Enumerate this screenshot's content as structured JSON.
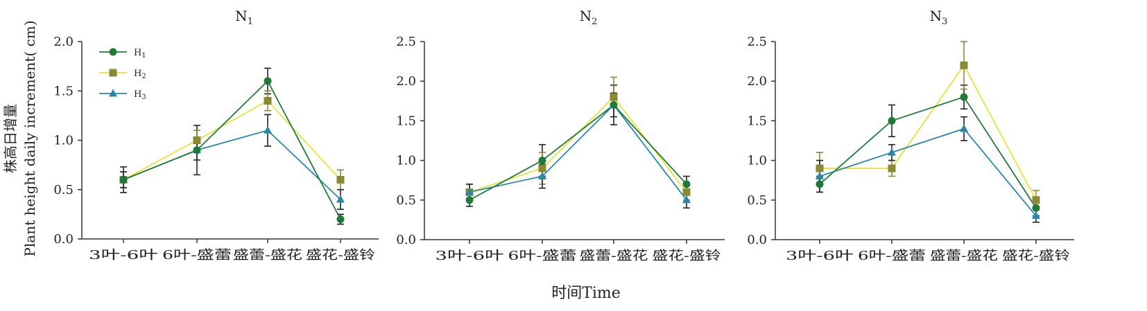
{
  "figure": {
    "xlabel": "时间Time",
    "ylabel_cn": "株高日增量",
    "ylabel_en": "Plant height daily increment( cm)"
  },
  "colors": {
    "H1": "#1f7a3a",
    "H2": "#e8e23a",
    "H3": "#2a87a8",
    "H2_marker": "#8a8a35",
    "axis": "#333333",
    "errorbar": "#222222"
  },
  "legend": [
    {
      "series": "H1",
      "base": "H",
      "sub": "1",
      "marker": "circle"
    },
    {
      "series": "H2",
      "base": "H",
      "sub": "2",
      "marker": "square"
    },
    {
      "series": "H3",
      "base": "H",
      "sub": "3",
      "marker": "triangle"
    }
  ],
  "chart_data": [
    {
      "type": "line",
      "title": "N",
      "title_sub": "1",
      "categories": [
        "3叶-6叶",
        "6叶-盛蕾",
        "盛蕾-盛花",
        "盛花-盛铃"
      ],
      "ylim": [
        0,
        2.0
      ],
      "yticks": [
        "0.0",
        "0.5",
        "1.0",
        "1.5",
        "2.0"
      ],
      "series": [
        {
          "name": "H1",
          "values": [
            0.6,
            0.9,
            1.6,
            0.2
          ],
          "errors": [
            0.13,
            0.25,
            0.13,
            0.05
          ]
        },
        {
          "name": "H2",
          "values": [
            0.6,
            1.0,
            1.4,
            0.6
          ],
          "errors": [
            0.08,
            0.1,
            0.1,
            0.1
          ]
        },
        {
          "name": "H3",
          "values": [
            0.6,
            0.9,
            1.1,
            0.4
          ],
          "errors": [
            0.08,
            0.1,
            0.16,
            0.1
          ]
        }
      ]
    },
    {
      "type": "line",
      "title": "N",
      "title_sub": "2",
      "categories": [
        "3叶-6叶",
        "6叶-盛蕾",
        "盛蕾-盛花",
        "盛花-盛铃"
      ],
      "ylim": [
        0,
        2.5
      ],
      "yticks": [
        "0.0",
        "0.5",
        "1.0",
        "1.5",
        "2.0",
        "2.5"
      ],
      "series": [
        {
          "name": "H1",
          "values": [
            0.5,
            1.0,
            1.7,
            0.7
          ],
          "errors": [
            0.08,
            0.2,
            0.25,
            0.1
          ]
        },
        {
          "name": "H2",
          "values": [
            0.6,
            0.9,
            1.8,
            0.6
          ],
          "errors": [
            0.1,
            0.2,
            0.25,
            0.1
          ]
        },
        {
          "name": "H3",
          "values": [
            0.6,
            0.8,
            1.7,
            0.5
          ],
          "errors": [
            0.1,
            0.15,
            0.15,
            0.1
          ]
        }
      ]
    },
    {
      "type": "line",
      "title": "N",
      "title_sub": "3",
      "categories": [
        "3叶-6叶",
        "6叶-盛蕾",
        "盛蕾-盛花",
        "盛花-盛铃"
      ],
      "ylim": [
        0,
        2.5
      ],
      "yticks": [
        "0.0",
        "0.5",
        "1.0",
        "1.5",
        "2.0",
        "2.5"
      ],
      "series": [
        {
          "name": "H1",
          "values": [
            0.7,
            1.5,
            1.8,
            0.4
          ],
          "errors": [
            0.1,
            0.2,
            0.15,
            0.1
          ]
        },
        {
          "name": "H2",
          "values": [
            0.9,
            0.9,
            2.2,
            0.5
          ],
          "errors": [
            0.2,
            0.1,
            0.3,
            0.12
          ]
        },
        {
          "name": "H3",
          "values": [
            0.8,
            1.1,
            1.4,
            0.3
          ],
          "errors": [
            0.2,
            0.1,
            0.15,
            0.08
          ]
        }
      ]
    }
  ]
}
